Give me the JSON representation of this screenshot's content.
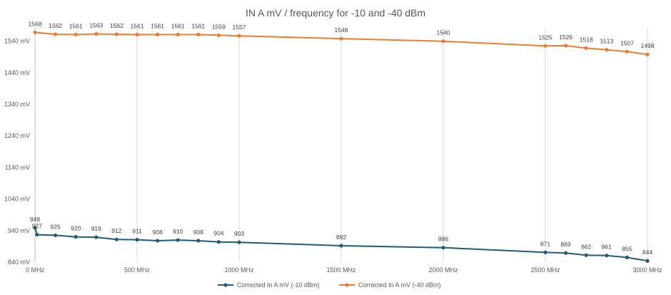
{
  "chart_data": {
    "type": "line",
    "title": "IN A mV / frequency for -10 and -40 dBm",
    "x_ticks": [
      0,
      500,
      1000,
      1500,
      2000,
      2500,
      3000
    ],
    "x_tick_labels": [
      "0 MHz",
      "500 MHz",
      "1000 MHz",
      "1500 MHz",
      "2000 MHz",
      "2500 MHz",
      "3000 MHz"
    ],
    "y_ticks": [
      840,
      940,
      1040,
      1140,
      1240,
      1340,
      1440,
      1540
    ],
    "y_tick_labels": [
      "840 mV",
      "940 mV",
      "1040 mV",
      "1140 mV",
      "1240 mV",
      "1340 mV",
      "1440 mV",
      "1540 mV"
    ],
    "xlim": [
      0,
      3000
    ],
    "ylim": [
      840,
      1580
    ],
    "grid": "vertical",
    "legend_position": "bottom",
    "series": [
      {
        "name": "Corrected In A mV (-10 dBm)",
        "color": "#1f5c7a",
        "x": [
          0,
          10,
          100,
          200,
          300,
          400,
          500,
          600,
          700,
          800,
          900,
          1000,
          1500,
          2000,
          2500,
          2600,
          2700,
          2800,
          2900,
          3000
        ],
        "y": [
          949,
          927,
          925,
          920,
          919,
          912,
          911,
          908,
          910,
          908,
          904,
          903,
          892,
          886,
          871,
          869,
          862,
          861,
          855,
          844
        ],
        "labels": [
          "949",
          "927",
          "925",
          "920",
          "919",
          "912",
          "911",
          "908",
          "910",
          "908",
          "904",
          "903",
          "892",
          "886",
          "871",
          "869",
          "862",
          "861",
          "855",
          "844"
        ]
      },
      {
        "name": "Corrected In A mV (-40 dBm)",
        "color": "#ed7d31",
        "x": [
          0,
          100,
          200,
          300,
          400,
          500,
          600,
          700,
          800,
          900,
          1000,
          1500,
          2000,
          2500,
          2600,
          2700,
          2800,
          2900,
          3000
        ],
        "y": [
          1568,
          1562,
          1561,
          1563,
          1562,
          1561,
          1561,
          1561,
          1561,
          1559,
          1557,
          1548,
          1540,
          1525,
          1526,
          1518,
          1513,
          1507,
          1498
        ],
        "labels": [
          "1568",
          "1562",
          "1561",
          "1563",
          "1562",
          "1561",
          "1561",
          "1561",
          "1561",
          "1559",
          "1557",
          "1548",
          "1540",
          "1525",
          "1526",
          "1518",
          "1513",
          "1507",
          "1498"
        ]
      }
    ]
  }
}
